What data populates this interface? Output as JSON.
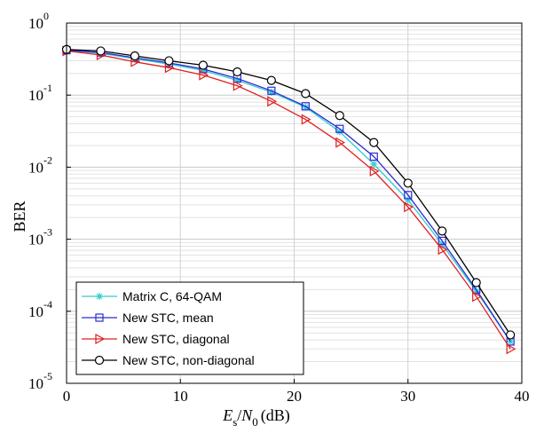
{
  "chart_data": {
    "type": "line",
    "xlabel_parts": {
      "E": "E",
      "s": "s",
      "slash": "/",
      "N": "N",
      "zero": "0",
      "unit": "(dB)"
    },
    "ylabel": "BER",
    "xlim": [
      0,
      40
    ],
    "ylim": [
      1e-05,
      1
    ],
    "yscale": "log",
    "grid": true,
    "legend_position": "bottom-left",
    "x_ticks": [
      "0",
      "10",
      "20",
      "30",
      "40"
    ],
    "y_ticks": [
      {
        "base": "10",
        "exp": "0"
      },
      {
        "base": "10",
        "exp": "-1"
      },
      {
        "base": "10",
        "exp": "-2"
      },
      {
        "base": "10",
        "exp": "-3"
      },
      {
        "base": "10",
        "exp": "-4"
      },
      {
        "base": "10",
        "exp": "-5"
      }
    ],
    "series": [
      {
        "name": "Matrix C, 64-QAM",
        "color": "#33cccc",
        "marker": "asterisk",
        "x": [
          0,
          3,
          6,
          9,
          12,
          15,
          18,
          21,
          24,
          27,
          30,
          33,
          36,
          39
        ],
        "y": [
          0.42,
          0.38,
          0.32,
          0.27,
          0.22,
          0.16,
          0.11,
          0.068,
          0.031,
          0.011,
          0.0035,
          0.00085,
          0.00019,
          3.8e-05
        ]
      },
      {
        "name": "New STC, mean",
        "color": "#2b2bd6",
        "marker": "square",
        "x": [
          0,
          3,
          6,
          9,
          12,
          15,
          18,
          21,
          24,
          27,
          30,
          33,
          36,
          39
        ],
        "y": [
          0.42,
          0.39,
          0.33,
          0.28,
          0.23,
          0.17,
          0.115,
          0.07,
          0.034,
          0.014,
          0.0041,
          0.00095,
          0.0002,
          3.8e-05
        ]
      },
      {
        "name": "New STC, diagonal",
        "color": "#e02020",
        "marker": "triangle-right",
        "x": [
          0,
          3,
          6,
          9,
          12,
          15,
          18,
          21,
          24,
          27,
          30,
          33,
          36,
          39
        ],
        "y": [
          0.41,
          0.36,
          0.29,
          0.24,
          0.19,
          0.135,
          0.082,
          0.046,
          0.022,
          0.0088,
          0.0028,
          0.00072,
          0.00016,
          3e-05
        ]
      },
      {
        "name": "New STC, non-diagonal",
        "color": "#000000",
        "marker": "circle",
        "x": [
          0,
          3,
          6,
          9,
          12,
          15,
          18,
          21,
          24,
          27,
          30,
          33,
          36,
          39
        ],
        "y": [
          0.43,
          0.41,
          0.35,
          0.3,
          0.26,
          0.21,
          0.16,
          0.105,
          0.052,
          0.022,
          0.006,
          0.0013,
          0.00025,
          4.7e-05
        ]
      }
    ]
  }
}
